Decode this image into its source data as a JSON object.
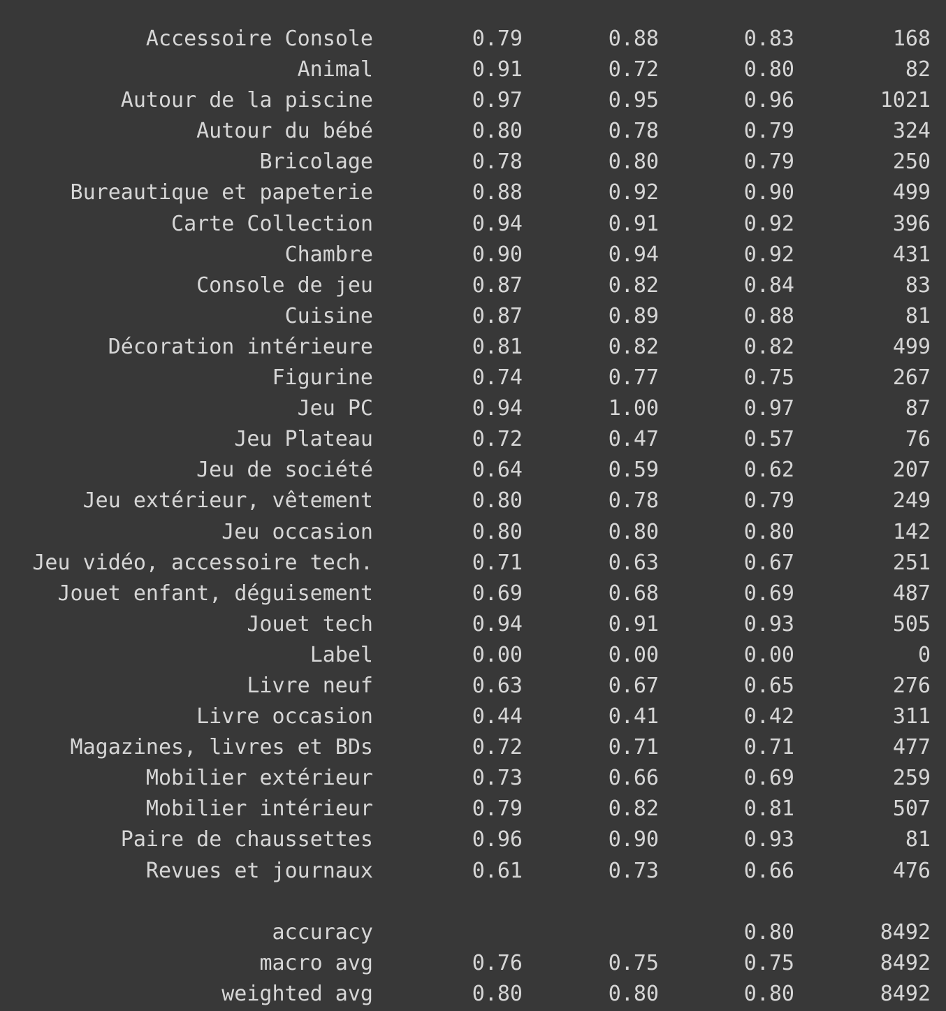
{
  "report": {
    "rows": [
      {
        "label": "Accessoire Console",
        "precision": "0.79",
        "recall": "0.88",
        "f1": "0.83",
        "support": "168"
      },
      {
        "label": "Animal",
        "precision": "0.91",
        "recall": "0.72",
        "f1": "0.80",
        "support": "82"
      },
      {
        "label": "Autour de la piscine",
        "precision": "0.97",
        "recall": "0.95",
        "f1": "0.96",
        "support": "1021"
      },
      {
        "label": "Autour du bébé",
        "precision": "0.80",
        "recall": "0.78",
        "f1": "0.79",
        "support": "324"
      },
      {
        "label": "Bricolage",
        "precision": "0.78",
        "recall": "0.80",
        "f1": "0.79",
        "support": "250"
      },
      {
        "label": "Bureautique et papeterie",
        "precision": "0.88",
        "recall": "0.92",
        "f1": "0.90",
        "support": "499"
      },
      {
        "label": "Carte Collection",
        "precision": "0.94",
        "recall": "0.91",
        "f1": "0.92",
        "support": "396"
      },
      {
        "label": "Chambre",
        "precision": "0.90",
        "recall": "0.94",
        "f1": "0.92",
        "support": "431"
      },
      {
        "label": "Console de jeu",
        "precision": "0.87",
        "recall": "0.82",
        "f1": "0.84",
        "support": "83"
      },
      {
        "label": "Cuisine",
        "precision": "0.87",
        "recall": "0.89",
        "f1": "0.88",
        "support": "81"
      },
      {
        "label": "Décoration intérieure",
        "precision": "0.81",
        "recall": "0.82",
        "f1": "0.82",
        "support": "499"
      },
      {
        "label": "Figurine",
        "precision": "0.74",
        "recall": "0.77",
        "f1": "0.75",
        "support": "267"
      },
      {
        "label": "Jeu PC",
        "precision": "0.94",
        "recall": "1.00",
        "f1": "0.97",
        "support": "87"
      },
      {
        "label": "Jeu Plateau",
        "precision": "0.72",
        "recall": "0.47",
        "f1": "0.57",
        "support": "76"
      },
      {
        "label": "Jeu de société",
        "precision": "0.64",
        "recall": "0.59",
        "f1": "0.62",
        "support": "207"
      },
      {
        "label": "Jeu extérieur, vêtement",
        "precision": "0.80",
        "recall": "0.78",
        "f1": "0.79",
        "support": "249"
      },
      {
        "label": "Jeu occasion",
        "precision": "0.80",
        "recall": "0.80",
        "f1": "0.80",
        "support": "142"
      },
      {
        "label": "Jeu vidéo, accessoire tech.",
        "precision": "0.71",
        "recall": "0.63",
        "f1": "0.67",
        "support": "251"
      },
      {
        "label": "Jouet enfant, déguisement",
        "precision": "0.69",
        "recall": "0.68",
        "f1": "0.69",
        "support": "487"
      },
      {
        "label": "Jouet tech",
        "precision": "0.94",
        "recall": "0.91",
        "f1": "0.93",
        "support": "505"
      },
      {
        "label": "Label",
        "precision": "0.00",
        "recall": "0.00",
        "f1": "0.00",
        "support": "0"
      },
      {
        "label": "Livre neuf",
        "precision": "0.63",
        "recall": "0.67",
        "f1": "0.65",
        "support": "276"
      },
      {
        "label": "Livre occasion",
        "precision": "0.44",
        "recall": "0.41",
        "f1": "0.42",
        "support": "311"
      },
      {
        "label": "Magazines, livres et BDs",
        "precision": "0.72",
        "recall": "0.71",
        "f1": "0.71",
        "support": "477"
      },
      {
        "label": "Mobilier extérieur",
        "precision": "0.73",
        "recall": "0.66",
        "f1": "0.69",
        "support": "259"
      },
      {
        "label": "Mobilier intérieur",
        "precision": "0.79",
        "recall": "0.82",
        "f1": "0.81",
        "support": "507"
      },
      {
        "label": "Paire de chaussettes",
        "precision": "0.96",
        "recall": "0.90",
        "f1": "0.93",
        "support": "81"
      },
      {
        "label": "Revues et journaux",
        "precision": "0.61",
        "recall": "0.73",
        "f1": "0.66",
        "support": "476"
      }
    ],
    "summary": [
      {
        "label": "accuracy",
        "precision": "",
        "recall": "",
        "f1": "0.80",
        "support": "8492"
      },
      {
        "label": "macro avg",
        "precision": "0.76",
        "recall": "0.75",
        "f1": "0.75",
        "support": "8492"
      },
      {
        "label": "weighted avg",
        "precision": "0.80",
        "recall": "0.80",
        "f1": "0.80",
        "support": "8492"
      }
    ]
  }
}
